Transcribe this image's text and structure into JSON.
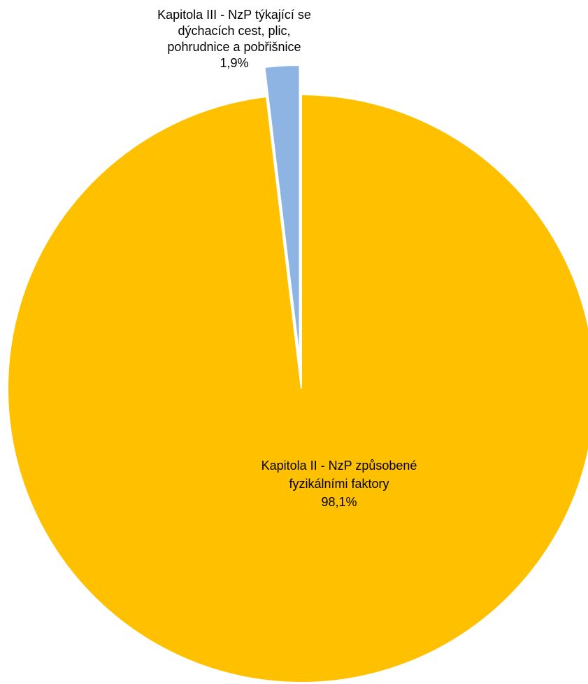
{
  "chart_data": {
    "type": "pie",
    "title": "",
    "start_angle_deg": 0,
    "direction": "clockwise",
    "categories": [
      "Kapitola II - NzP způsobené fyzikálními faktory",
      "Kapitola III - NzP týkající se dýchacích cest, plic, pohrudnice a pobřišnice"
    ],
    "values": [
      98.1,
      1.9
    ],
    "colors": [
      "#FFC000",
      "#8EB4E3"
    ],
    "exploded": [
      false,
      true
    ],
    "legend": "none",
    "data_labels": [
      {
        "lines": [
          "Kapitola II - NzP způsobené",
          "fyzikálními faktory"
        ],
        "percent": "98,1%"
      },
      {
        "lines": [
          "Kapitola III - NzP týkající se",
          "dýchacích cest, plic,",
          "pohrudnice a pobřišnice"
        ],
        "percent": "1,9%"
      }
    ]
  }
}
